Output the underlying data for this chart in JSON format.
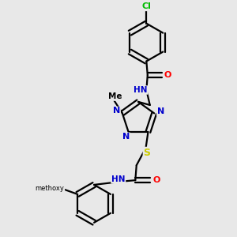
{
  "background_color": "#e8e8e8",
  "bond_color": "#000000",
  "N_color": "#0000cc",
  "O_color": "#ff0000",
  "S_color": "#cccc00",
  "Cl_color": "#00bb00",
  "lw": 1.6,
  "xlim": [
    0,
    1
  ],
  "ylim": [
    0,
    1
  ]
}
